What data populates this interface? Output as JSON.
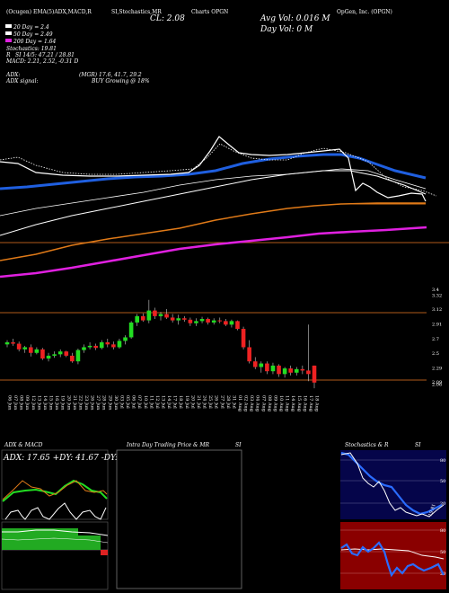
{
  "header": {
    "top_left": "(Ocugen) EMA(5)ADX,MACD,R",
    "top_mid": "SI,Stochastics,MR",
    "top_right": "OpGen, Inc. (OPGN)",
    "charts_label": "Charts OPGN",
    "close_label": "CL: 2.08",
    "avg_vol_label": "Avg Vol: 0.016  M",
    "day_vol_label": "Day Vol: 0   M",
    "ma20": "20   Day = 2.4",
    "ma50": "50   Day = 2.49",
    "ma200": "200  Day = 1.64",
    "stoch_label": "Stochastics: 19.81",
    "rsi_label": "R",
    "rsi_value": "SI 14/5: 47.21 / 28.81",
    "macd_label": "MACD: 2.21, 2.52, -0.31 D",
    "adx_label": "ADX:",
    "adx_value": "(MGR) 17.6, 41.7, 29.2",
    "adx_signal_label": "ADX  signal:",
    "adx_signal_value": "BUY Growing @ 18%"
  },
  "chart_data": [
    {
      "type": "candlestick",
      "title": "",
      "ylim": [
        1.95,
        3.4
      ],
      "price_ticks": [
        3.4,
        3.32,
        3.12,
        2.91,
        2.7,
        2.5,
        2.29,
        2.09,
        2.06
      ],
      "dates": [
        "06 Jun",
        "07 Jun",
        "08 Jun",
        "09 Jun",
        "12 Jun",
        "13 Jun",
        "14 Jun",
        "15 Jun",
        "16 Jun",
        "19 Jun",
        "20 Jun",
        "21 Jun",
        "22 Jun",
        "23 Jun",
        "26 Jun",
        "27 Jun",
        "28 Jun",
        "29 Jun",
        "30 Jun",
        "03 Jul",
        "05 Jul",
        "06 Jul",
        "07 Jul",
        "10 Jul",
        "11 Jul",
        "12 Jul",
        "13 Jul",
        "14 Jul",
        "17 Jul",
        "18 Jul",
        "19 Jul",
        "20 Jul",
        "21 Jul",
        "24 Jul",
        "25 Jul",
        "26 Jul",
        "27 Jul",
        "28 Jul",
        "31 Jul",
        "01 Aug",
        "02 Aug",
        "03 Aug",
        "04 Aug",
        "07 Aug",
        "08 Aug",
        "09 Aug",
        "10 Aug",
        "11 Aug",
        "14 Aug",
        "15 Aug",
        "16 Aug",
        "17 Aug",
        "18 Aug"
      ],
      "ohlc": [
        [
          2.62,
          2.68,
          2.58,
          2.65
        ],
        [
          2.65,
          2.7,
          2.6,
          2.63
        ],
        [
          2.63,
          2.66,
          2.52,
          2.55
        ],
        [
          2.55,
          2.6,
          2.5,
          2.58
        ],
        [
          2.58,
          2.62,
          2.45,
          2.5
        ],
        [
          2.5,
          2.58,
          2.48,
          2.55
        ],
        [
          2.55,
          2.57,
          2.4,
          2.42
        ],
        [
          2.42,
          2.5,
          2.38,
          2.46
        ],
        [
          2.46,
          2.52,
          2.43,
          2.48
        ],
        [
          2.48,
          2.55,
          2.44,
          2.52
        ],
        [
          2.52,
          2.53,
          2.44,
          2.46
        ],
        [
          2.46,
          2.5,
          2.36,
          2.38
        ],
        [
          2.38,
          2.56,
          2.34,
          2.54
        ],
        [
          2.54,
          2.62,
          2.5,
          2.58
        ],
        [
          2.58,
          2.65,
          2.55,
          2.6
        ],
        [
          2.6,
          2.63,
          2.54,
          2.57
        ],
        [
          2.57,
          2.68,
          2.55,
          2.65
        ],
        [
          2.65,
          2.7,
          2.58,
          2.62
        ],
        [
          2.62,
          2.66,
          2.55,
          2.58
        ],
        [
          2.58,
          2.7,
          2.56,
          2.67
        ],
        [
          2.67,
          2.75,
          2.62,
          2.72
        ],
        [
          2.72,
          2.95,
          2.7,
          2.93
        ],
        [
          2.93,
          3.05,
          2.88,
          3.02
        ],
        [
          3.02,
          3.06,
          2.94,
          2.96
        ],
        [
          2.96,
          3.25,
          2.92,
          3.1
        ],
        [
          3.1,
          3.14,
          2.98,
          3.02
        ],
        [
          3.02,
          3.08,
          2.96,
          3.05
        ],
        [
          3.05,
          3.12,
          2.98,
          3.0
        ],
        [
          3.0,
          3.05,
          2.93,
          2.96
        ],
        [
          2.96,
          3.04,
          2.9,
          2.99
        ],
        [
          2.99,
          3.02,
          2.94,
          2.97
        ],
        [
          2.97,
          3.0,
          2.88,
          2.92
        ],
        [
          2.92,
          2.99,
          2.88,
          2.95
        ],
        [
          2.95,
          3.01,
          2.92,
          2.98
        ],
        [
          2.98,
          3.0,
          2.9,
          2.93
        ],
        [
          2.93,
          2.99,
          2.9,
          2.96
        ],
        [
          2.96,
          3.0,
          2.92,
          2.95
        ],
        [
          2.95,
          2.98,
          2.88,
          2.9
        ],
        [
          2.9,
          2.97,
          2.86,
          2.95
        ],
        [
          2.95,
          2.96,
          2.82,
          2.84
        ],
        [
          2.84,
          2.87,
          2.55,
          2.58
        ],
        [
          2.58,
          2.68,
          2.35,
          2.38
        ],
        [
          2.38,
          2.44,
          2.27,
          2.3
        ],
        [
          2.3,
          2.38,
          2.22,
          2.35
        ],
        [
          2.35,
          2.38,
          2.2,
          2.24
        ],
        [
          2.24,
          2.36,
          2.2,
          2.32
        ],
        [
          2.32,
          2.34,
          2.16,
          2.2
        ],
        [
          2.2,
          2.3,
          2.15,
          2.28
        ],
        [
          2.28,
          2.32,
          2.18,
          2.22
        ],
        [
          2.22,
          2.3,
          2.18,
          2.27
        ],
        [
          2.27,
          2.32,
          2.2,
          2.25
        ],
        [
          2.25,
          2.9,
          2.1,
          2.2
        ],
        [
          2.32,
          2.32,
          2.0,
          2.08
        ]
      ]
    },
    {
      "type": "line",
      "title": "ADX  & MACD",
      "label": "ADX: 17.65  +DY: 41.67  -DY: 29.17"
    },
    {
      "type": "line",
      "title": "Intra  Day Trading Price  & MR",
      "title_right": "SI"
    },
    {
      "type": "line",
      "title": "Stochastics  & R",
      "title_right": "SI",
      "stoch_ticks": [
        "80",
        "50",
        "20"
      ],
      "stoch_value_label": "19.81",
      "rsi_ticks": [
        "80",
        "50",
        "20"
      ]
    }
  ],
  "colors": {
    "ema20": "#1f5fe0",
    "ema200": "#e07a18",
    "ema_magenta": "#e020e0",
    "up": "#22dd22",
    "down": "#ee2222",
    "hline": "#b05a1a",
    "rsi_bg": "#8a0000",
    "stoch_bg": "#05054a"
  }
}
